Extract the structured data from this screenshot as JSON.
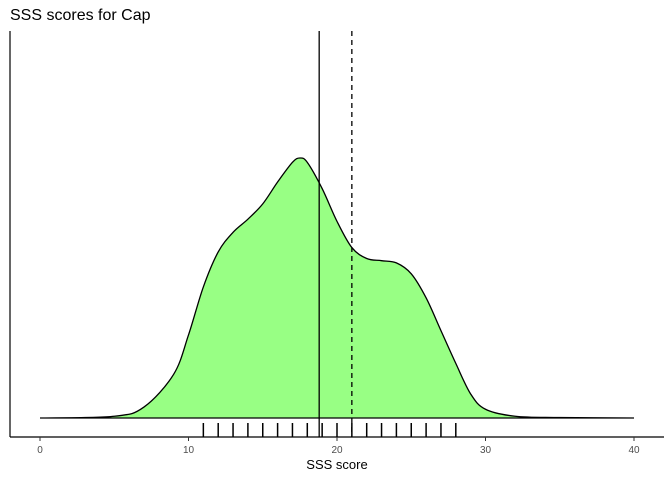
{
  "chart_data": {
    "type": "area",
    "title": "SSS scores for Cap",
    "xlabel": "SSS score",
    "ylabel": "",
    "xlim": [
      0,
      40
    ],
    "x_ticks": [
      0,
      10,
      20,
      30,
      40
    ],
    "x_tick_labels": [
      "0",
      "10",
      "20",
      "30",
      "40"
    ],
    "fill_color": "#98ff84",
    "line_color": "#000000",
    "density_curve": {
      "x": [
        0,
        5,
        7,
        9,
        10,
        11,
        12,
        13,
        14,
        15,
        16,
        17,
        17.5,
        18,
        19,
        20,
        21,
        22,
        23,
        24,
        25,
        26,
        27,
        28,
        29,
        30,
        32,
        35,
        40
      ],
      "y": [
        0,
        0.0008,
        0.005,
        0.02,
        0.038,
        0.06,
        0.076,
        0.085,
        0.091,
        0.098,
        0.108,
        0.117,
        0.119,
        0.117,
        0.105,
        0.09,
        0.078,
        0.073,
        0.072,
        0.071,
        0.066,
        0.055,
        0.04,
        0.025,
        0.011,
        0.004,
        0.0008,
        0.0002,
        0
      ]
    },
    "rug": [
      11,
      12,
      13,
      14,
      15,
      16,
      17,
      18,
      19,
      20,
      21,
      22,
      23,
      24,
      25,
      26,
      27,
      28
    ],
    "vlines": [
      {
        "x": 18.8,
        "style": "solid"
      },
      {
        "x": 21,
        "style": "dashed"
      }
    ],
    "grid": false
  }
}
